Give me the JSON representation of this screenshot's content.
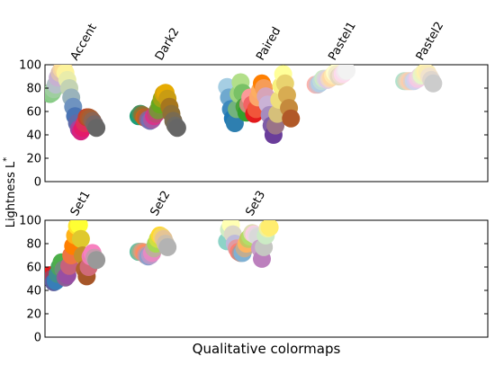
{
  "figure": {
    "xlabel": "Qualitative colormaps",
    "ylabel_main": "Lightness L",
    "ylabel_sup": "*"
  },
  "chart_data": [
    {
      "type": "scatter",
      "panel": "top",
      "ylim": [
        0,
        100
      ],
      "yticks": [
        0,
        20,
        40,
        60,
        80,
        100
      ],
      "grid": false,
      "series": [
        {
          "name": "Accent",
          "points": [
            {
              "y": 75,
              "color": "#7fc97f"
            },
            {
              "y": 76,
              "color": "#8ccc8a"
            },
            {
              "y": 79,
              "color": "#9fcea0"
            },
            {
              "y": 83,
              "color": "#b6c1c9"
            },
            {
              "y": 89,
              "color": "#c7b1d1"
            },
            {
              "y": 93,
              "color": "#dcc0b4"
            },
            {
              "y": 96,
              "color": "#f2d3a3"
            },
            {
              "y": 97,
              "color": "#fcde93"
            },
            {
              "y": 93,
              "color": "#fdf39c"
            },
            {
              "y": 87,
              "color": "#e9ecaa"
            },
            {
              "y": 80,
              "color": "#c4d3b3"
            },
            {
              "y": 72,
              "color": "#9ab3bb"
            },
            {
              "y": 64,
              "color": "#6f93c0"
            },
            {
              "y": 56,
              "color": "#4a74b4"
            },
            {
              "y": 50,
              "color": "#5f6aa9"
            },
            {
              "y": 45,
              "color": "#a0459f"
            },
            {
              "y": 43,
              "color": "#d6227f"
            },
            {
              "y": 46,
              "color": "#e41a6a"
            },
            {
              "y": 50,
              "color": "#df2f5a"
            },
            {
              "y": 55,
              "color": "#c2402f"
            },
            {
              "y": 55,
              "color": "#b65628"
            },
            {
              "y": 54,
              "color": "#a45e36"
            },
            {
              "y": 52,
              "color": "#8d6452"
            },
            {
              "y": 49,
              "color": "#766666"
            },
            {
              "y": 46,
              "color": "#666666"
            }
          ]
        },
        {
          "name": "Dark2",
          "points": [
            {
              "y": 56,
              "color": "#1b9e77"
            },
            {
              "y": 58,
              "color": "#4b8f5c"
            },
            {
              "y": 57,
              "color": "#8a7535"
            },
            {
              "y": 55,
              "color": "#c5651b"
            },
            {
              "y": 55,
              "color": "#b5612e"
            },
            {
              "y": 53,
              "color": "#8a6690"
            },
            {
              "y": 52,
              "color": "#7570b3"
            },
            {
              "y": 53,
              "color": "#a55aa3"
            },
            {
              "y": 56,
              "color": "#d8348c"
            },
            {
              "y": 58,
              "color": "#bf4878"
            },
            {
              "y": 61,
              "color": "#7d8f3d"
            },
            {
              "y": 66,
              "color": "#66a61e"
            },
            {
              "y": 71,
              "color": "#9aa414"
            },
            {
              "y": 75,
              "color": "#d3a20a"
            },
            {
              "y": 76,
              "color": "#e6ab02"
            },
            {
              "y": 71,
              "color": "#c99c12"
            },
            {
              "y": 64,
              "color": "#a6761d"
            },
            {
              "y": 58,
              "color": "#8f7035"
            },
            {
              "y": 52,
              "color": "#7a6b50"
            },
            {
              "y": 48,
              "color": "#6d6a62"
            },
            {
              "y": 46,
              "color": "#666666"
            }
          ]
        },
        {
          "name": "Paired",
          "points": [
            {
              "y": 81,
              "color": "#a6cee3"
            },
            {
              "y": 72,
              "color": "#6fa9cf"
            },
            {
              "y": 62,
              "color": "#3d89be"
            },
            {
              "y": 54,
              "color": "#1f78b4"
            },
            {
              "y": 50,
              "color": "#2e7fb0"
            },
            {
              "y": 62,
              "color": "#73b37e"
            },
            {
              "y": 75,
              "color": "#9ed47e"
            },
            {
              "y": 85,
              "color": "#b2df8a"
            },
            {
              "y": 76,
              "color": "#79c166"
            },
            {
              "y": 64,
              "color": "#4aa23c"
            },
            {
              "y": 59,
              "color": "#33a02c"
            },
            {
              "y": 66,
              "color": "#c98d7b"
            },
            {
              "y": 72,
              "color": "#fb9a99"
            },
            {
              "y": 66,
              "color": "#f26365"
            },
            {
              "y": 58,
              "color": "#e31a1c"
            },
            {
              "y": 62,
              "color": "#f1553a"
            },
            {
              "y": 72,
              "color": "#fca66a"
            },
            {
              "y": 78,
              "color": "#fdae61"
            },
            {
              "y": 84,
              "color": "#ff7f00"
            },
            {
              "y": 80,
              "color": "#f69c57"
            },
            {
              "y": 73,
              "color": "#d7a4b8"
            },
            {
              "y": 66,
              "color": "#cab2d6"
            },
            {
              "y": 57,
              "color": "#a58bbf"
            },
            {
              "y": 48,
              "color": "#7e5ca8"
            },
            {
              "y": 40,
              "color": "#6a3d9a"
            },
            {
              "y": 48,
              "color": "#9a7388"
            },
            {
              "y": 58,
              "color": "#d6c07a"
            },
            {
              "y": 70,
              "color": "#eede7c"
            },
            {
              "y": 82,
              "color": "#f8f27f"
            },
            {
              "y": 92,
              "color": "#ffff99"
            },
            {
              "y": 84,
              "color": "#e9d36f"
            },
            {
              "y": 74,
              "color": "#d8ac52"
            },
            {
              "y": 63,
              "color": "#c58a3d"
            },
            {
              "y": 54,
              "color": "#b15928"
            }
          ]
        },
        {
          "name": "Pastel1",
          "points": [
            {
              "y": 83,
              "color": "#fbb4ae"
            },
            {
              "y": 83,
              "color": "#d8bcc4"
            },
            {
              "y": 84,
              "color": "#b3cde3"
            },
            {
              "y": 86,
              "color": "#c0dbd9"
            },
            {
              "y": 88,
              "color": "#ccebc5"
            },
            {
              "y": 88,
              "color": "#d7d8d9"
            },
            {
              "y": 87,
              "color": "#decbe4"
            },
            {
              "y": 88,
              "color": "#f0d8c6"
            },
            {
              "y": 89,
              "color": "#fed9a6"
            },
            {
              "y": 91,
              "color": "#ffe9b1"
            },
            {
              "y": 93,
              "color": "#ffffcc"
            },
            {
              "y": 92,
              "color": "#f3ecca"
            },
            {
              "y": 90,
              "color": "#e5d8bd"
            },
            {
              "y": 91,
              "color": "#f0dcd2"
            },
            {
              "y": 92,
              "color": "#fddaec"
            },
            {
              "y": 94,
              "color": "#f4e6ee"
            },
            {
              "y": 95,
              "color": "#f2f2f2"
            }
          ]
        },
        {
          "name": "Pastel2",
          "points": [
            {
              "y": 86,
              "color": "#b3e2cd"
            },
            {
              "y": 86,
              "color": "#cfd8c0"
            },
            {
              "y": 86,
              "color": "#e9d5bd"
            },
            {
              "y": 86,
              "color": "#fdcdac"
            },
            {
              "y": 86,
              "color": "#e2cfc6"
            },
            {
              "y": 86,
              "color": "#cbd5e8"
            },
            {
              "y": 87,
              "color": "#dcccec"
            },
            {
              "y": 88,
              "color": "#f4cae4"
            },
            {
              "y": 90,
              "color": "#edd7dd"
            },
            {
              "y": 91,
              "color": "#e6f5c9"
            },
            {
              "y": 93,
              "color": "#f2f2bc"
            },
            {
              "y": 94,
              "color": "#fff2ae"
            },
            {
              "y": 93,
              "color": "#f9ecb6"
            },
            {
              "y": 90,
              "color": "#f1e2cc"
            },
            {
              "y": 87,
              "color": "#dfd6cd"
            },
            {
              "y": 84,
              "color": "#cccccc"
            }
          ]
        }
      ]
    },
    {
      "type": "scatter",
      "panel": "bottom",
      "ylim": [
        0,
        100
      ],
      "yticks": [
        0,
        20,
        40,
        60,
        80,
        100
      ],
      "grid": false,
      "series": [
        {
          "name": "Set1",
          "points": [
            {
              "y": 53,
              "color": "#e41a1c"
            },
            {
              "y": 50,
              "color": "#a53d5c"
            },
            {
              "y": 47,
              "color": "#5e5d9c"
            },
            {
              "y": 48,
              "color": "#377eb8"
            },
            {
              "y": 54,
              "color": "#3e8e8f"
            },
            {
              "y": 60,
              "color": "#4aa35f"
            },
            {
              "y": 64,
              "color": "#4daf4a"
            },
            {
              "y": 58,
              "color": "#6d8e78"
            },
            {
              "y": 51,
              "color": "#8c5d96"
            },
            {
              "y": 53,
              "color": "#984ea3"
            },
            {
              "y": 61,
              "color": "#c6617c"
            },
            {
              "y": 70,
              "color": "#ee7442"
            },
            {
              "y": 78,
              "color": "#ff7f00"
            },
            {
              "y": 87,
              "color": "#ffb219"
            },
            {
              "y": 95,
              "color": "#ffe52b"
            },
            {
              "y": 96,
              "color": "#ffff33"
            },
            {
              "y": 84,
              "color": "#dfc92e"
            },
            {
              "y": 70,
              "color": "#c4902b"
            },
            {
              "y": 58,
              "color": "#b0622c"
            },
            {
              "y": 52,
              "color": "#a65628"
            },
            {
              "y": 60,
              "color": "#d06a78"
            },
            {
              "y": 69,
              "color": "#ef7ab3"
            },
            {
              "y": 72,
              "color": "#f781bf"
            },
            {
              "y": 68,
              "color": "#c89aad"
            },
            {
              "y": 66,
              "color": "#999999"
            }
          ]
        },
        {
          "name": "Set2",
          "points": [
            {
              "y": 73,
              "color": "#66c2a5"
            },
            {
              "y": 73,
              "color": "#9db08f"
            },
            {
              "y": 73,
              "color": "#d69e80"
            },
            {
              "y": 72,
              "color": "#fc8d62"
            },
            {
              "y": 70,
              "color": "#c9979c"
            },
            {
              "y": 69,
              "color": "#8da0cb"
            },
            {
              "y": 70,
              "color": "#b899c8"
            },
            {
              "y": 72,
              "color": "#e78ac3"
            },
            {
              "y": 76,
              "color": "#bfae9d"
            },
            {
              "y": 80,
              "color": "#a6d854"
            },
            {
              "y": 84,
              "color": "#d0df42"
            },
            {
              "y": 87,
              "color": "#ffd92f"
            },
            {
              "y": 86,
              "color": "#f5d564"
            },
            {
              "y": 84,
              "color": "#e5c494"
            },
            {
              "y": 80,
              "color": "#cdbfab"
            },
            {
              "y": 77,
              "color": "#b3b3b3"
            }
          ]
        },
        {
          "name": "Set3",
          "points": [
            {
              "y": 82,
              "color": "#8dd3c7"
            },
            {
              "y": 92,
              "color": "#d1ecc4"
            },
            {
              "y": 96,
              "color": "#ffffb3"
            },
            {
              "y": 88,
              "color": "#dcd8c7"
            },
            {
              "y": 80,
              "color": "#bebada"
            },
            {
              "y": 76,
              "color": "#e29aa2"
            },
            {
              "y": 73,
              "color": "#fb8072"
            },
            {
              "y": 72,
              "color": "#b8938f"
            },
            {
              "y": 72,
              "color": "#80b1d3"
            },
            {
              "y": 76,
              "color": "#c0ad93"
            },
            {
              "y": 80,
              "color": "#fdb462"
            },
            {
              "y": 84,
              "color": "#c3c861"
            },
            {
              "y": 86,
              "color": "#b3de69"
            },
            {
              "y": 89,
              "color": "#dfddb3"
            },
            {
              "y": 88,
              "color": "#fccde5"
            },
            {
              "y": 87,
              "color": "#e7d8e1"
            },
            {
              "y": 86,
              "color": "#d9d9d9"
            },
            {
              "y": 76,
              "color": "#c9a1c9"
            },
            {
              "y": 67,
              "color": "#bc80bd"
            },
            {
              "y": 77,
              "color": "#c5c7c2"
            },
            {
              "y": 87,
              "color": "#ccebc5"
            },
            {
              "y": 93,
              "color": "#f2f19b"
            },
            {
              "y": 94,
              "color": "#ffed6f"
            }
          ]
        }
      ]
    }
  ]
}
